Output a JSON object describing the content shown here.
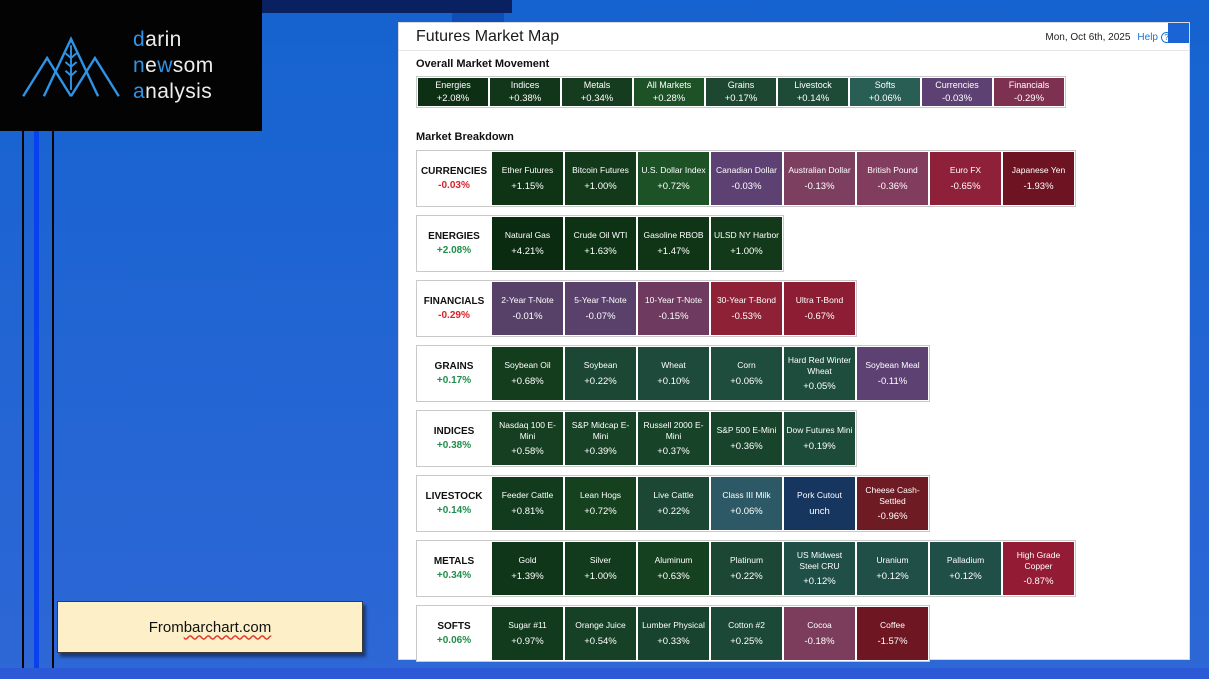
{
  "branding": {
    "accent": "#2f93e6",
    "words": [
      {
        "text": "darin",
        "blue_letters": [
          0
        ]
      },
      {
        "text": "newsom",
        "blue_letters": [
          0,
          2
        ]
      },
      {
        "text": "analysis",
        "blue_letters": [
          0
        ]
      }
    ]
  },
  "scene": {
    "note": {
      "prefix": "From ",
      "source": "barchart.com"
    }
  },
  "market_map": {
    "title": "Futures Market Map",
    "date": "Mon, Oct 6th, 2025",
    "help_label": "Help",
    "overall": {
      "heading": "Overall Market Movement",
      "tiles": [
        {
          "name": "Energies",
          "change": "+2.08%",
          "color": "#0d2f13"
        },
        {
          "name": "Indices",
          "change": "+0.38%",
          "color": "#123619"
        },
        {
          "name": "Metals",
          "change": "+0.34%",
          "color": "#153c1e"
        },
        {
          "name": "All Markets",
          "change": "+0.28%",
          "color": "#1d5126"
        },
        {
          "name": "Grains",
          "change": "+0.17%",
          "color": "#1d4730"
        },
        {
          "name": "Livestock",
          "change": "+0.14%",
          "color": "#1e4b38"
        },
        {
          "name": "Softs",
          "change": "+0.06%",
          "color": "#295e54"
        },
        {
          "name": "Currencies",
          "change": "-0.03%",
          "color": "#5e4173"
        },
        {
          "name": "Financials",
          "change": "-0.29%",
          "color": "#7e3050"
        }
      ]
    },
    "breakdown": {
      "heading": "Market Breakdown",
      "rows": [
        {
          "category": "CURRENCIES",
          "change": "-0.03%",
          "direction": "down",
          "tiles": [
            {
              "name": "Ether Futures",
              "change": "+1.15%",
              "color": "#0e3315"
            },
            {
              "name": "Bitcoin Futures",
              "change": "+1.00%",
              "color": "#123a1a"
            },
            {
              "name": "U.S. Dollar Index",
              "change": "+0.72%",
              "color": "#1d5226"
            },
            {
              "name": "Canadian Dollar",
              "change": "-0.03%",
              "color": "#5e4173"
            },
            {
              "name": "Australian Dollar",
              "change": "-0.13%",
              "color": "#7d3f60"
            },
            {
              "name": "British Pound",
              "change": "-0.36%",
              "color": "#823c5e"
            },
            {
              "name": "Euro FX",
              "change": "-0.65%",
              "color": "#8e2139"
            },
            {
              "name": "Japanese Yen",
              "change": "-1.93%",
              "color": "#6d1322"
            }
          ]
        },
        {
          "category": "ENERGIES",
          "change": "+2.08%",
          "direction": "up",
          "tiles": [
            {
              "name": "Natural Gas",
              "change": "+4.21%",
              "color": "#0a2b10"
            },
            {
              "name": "Crude Oil WTI",
              "change": "+1.63%",
              "color": "#0e3314"
            },
            {
              "name": "Gasoline RBOB",
              "change": "+1.47%",
              "color": "#0f3516"
            },
            {
              "name": "ULSD NY Harbor",
              "change": "+1.00%",
              "color": "#123a1a"
            }
          ]
        },
        {
          "category": "FINANCIALS",
          "change": "-0.29%",
          "direction": "down",
          "tiles": [
            {
              "name": "2-Year T-Note",
              "change": "-0.01%",
              "color": "#574169"
            },
            {
              "name": "5-Year T-Note",
              "change": "-0.07%",
              "color": "#59416b"
            },
            {
              "name": "10-Year T-Note",
              "change": "-0.15%",
              "color": "#6e3a5f"
            },
            {
              "name": "30-Year T-Bond",
              "change": "-0.53%",
              "color": "#8e2136"
            },
            {
              "name": "Ultra T-Bond",
              "change": "-0.67%",
              "color": "#8c1d33"
            }
          ]
        },
        {
          "category": "GRAINS",
          "change": "+0.17%",
          "direction": "up",
          "tiles": [
            {
              "name": "Soybean Oil",
              "change": "+0.68%",
              "color": "#143d1e"
            },
            {
              "name": "Soybean",
              "change": "+0.22%",
              "color": "#1b4734"
            },
            {
              "name": "Wheat",
              "change": "+0.10%",
              "color": "#1d4a3b"
            },
            {
              "name": "Corn",
              "change": "+0.06%",
              "color": "#1e4c3d"
            },
            {
              "name": "Hard Red Winter Wheat",
              "change": "+0.05%",
              "color": "#1e4d3e"
            },
            {
              "name": "Soybean Meal",
              "change": "-0.11%",
              "color": "#5e4173"
            }
          ]
        },
        {
          "category": "INDICES",
          "change": "+0.38%",
          "direction": "up",
          "tiles": [
            {
              "name": "Nasdaq 100 E-Mini",
              "change": "+0.58%",
              "color": "#153f20"
            },
            {
              "name": "S&P Midcap E-Mini",
              "change": "+0.39%",
              "color": "#174226"
            },
            {
              "name": "Russell 2000 E-Mini",
              "change": "+0.37%",
              "color": "#174329"
            },
            {
              "name": "S&P 500 E-Mini",
              "change": "+0.36%",
              "color": "#18442c"
            },
            {
              "name": "Dow Futures Mini",
              "change": "+0.19%",
              "color": "#1d4b39"
            }
          ]
        },
        {
          "category": "LIVESTOCK",
          "change": "+0.14%",
          "direction": "up",
          "tiles": [
            {
              "name": "Feeder Cattle",
              "change": "+0.81%",
              "color": "#123a1c"
            },
            {
              "name": "Lean Hogs",
              "change": "+0.72%",
              "color": "#15411f"
            },
            {
              "name": "Live Cattle",
              "change": "+0.22%",
              "color": "#1b4734"
            },
            {
              "name": "Class III Milk",
              "change": "+0.06%",
              "color": "#2d5966"
            },
            {
              "name": "Pork Cutout",
              "change": "unch",
              "color": "#16355f"
            },
            {
              "name": "Cheese Cash-Settled",
              "change": "-0.96%",
              "color": "#6e1b24"
            }
          ]
        },
        {
          "category": "METALS",
          "change": "+0.34%",
          "direction": "up",
          "tiles": [
            {
              "name": "Gold",
              "change": "+1.39%",
              "color": "#10361a"
            },
            {
              "name": "Silver",
              "change": "+1.00%",
              "color": "#123a1c"
            },
            {
              "name": "Aluminum",
              "change": "+0.63%",
              "color": "#164121"
            },
            {
              "name": "Platinum",
              "change": "+0.22%",
              "color": "#1b4734"
            },
            {
              "name": "US Midwest Steel CRU",
              "change": "+0.12%",
              "color": "#1f4f46"
            },
            {
              "name": "Uranium",
              "change": "+0.12%",
              "color": "#204f47"
            },
            {
              "name": "Palladium",
              "change": "+0.12%",
              "color": "#204f47"
            },
            {
              "name": "High Grade Copper",
              "change": "-0.87%",
              "color": "#931c34"
            }
          ]
        },
        {
          "category": "SOFTS",
          "change": "+0.06%",
          "direction": "up",
          "tiles": [
            {
              "name": "Sugar #11",
              "change": "+0.97%",
              "color": "#123a1c"
            },
            {
              "name": "Orange Juice",
              "change": "+0.54%",
              "color": "#164126"
            },
            {
              "name": "Lumber Physical",
              "change": "+0.33%",
              "color": "#18432e"
            },
            {
              "name": "Cotton #2",
              "change": "+0.25%",
              "color": "#1c4838"
            },
            {
              "name": "Cocoa",
              "change": "-0.18%",
              "color": "#7c3d5c"
            },
            {
              "name": "Coffee",
              "change": "-1.57%",
              "color": "#6e1622"
            }
          ]
        }
      ]
    }
  }
}
